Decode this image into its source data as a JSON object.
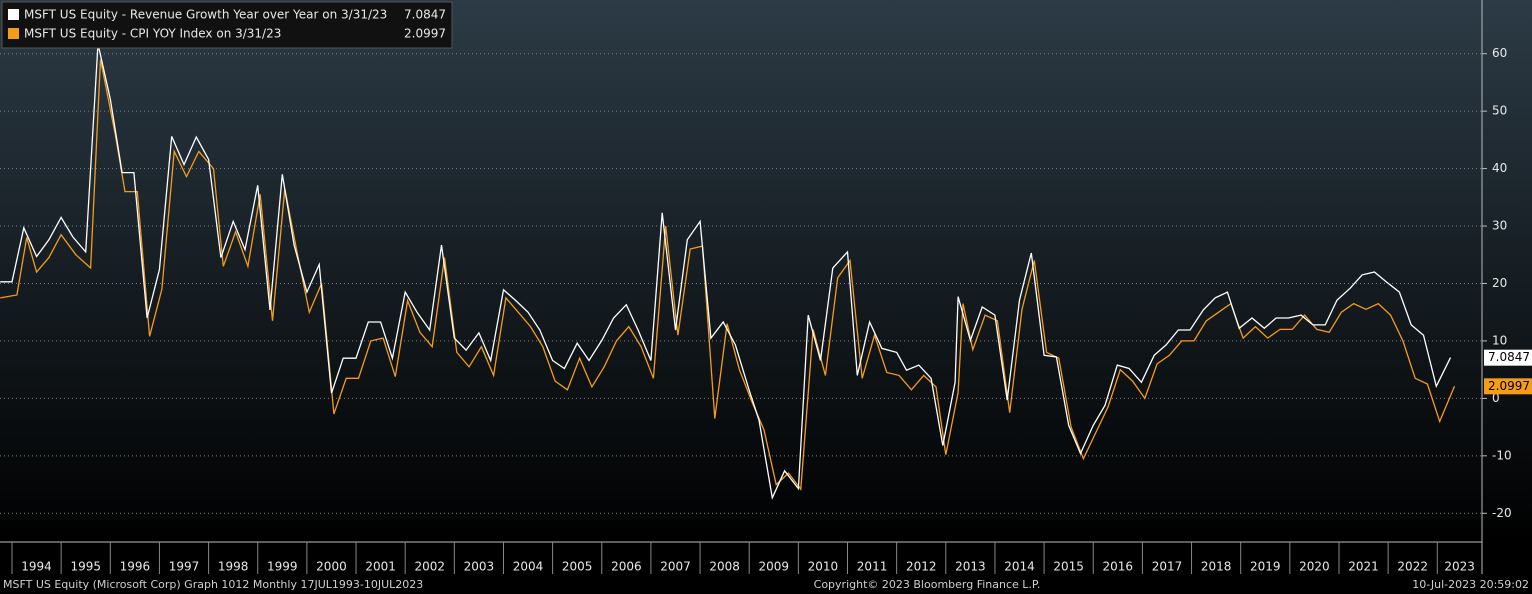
{
  "chart_data": {
    "type": "line",
    "series": [
      {
        "name": "MSFT US Equity - Revenue Growth Year over Year on 3/31/23",
        "color": "#ffffff",
        "last_value": 7.0847,
        "x": [
          1993.76,
          1994.0,
          1994.24,
          1994.5,
          1994.75,
          1995.0,
          1995.24,
          1995.5,
          1995.75,
          1996.0,
          1996.24,
          1996.48,
          1996.75,
          1997.0,
          1997.25,
          1997.5,
          1997.75,
          1998.0,
          1998.25,
          1998.5,
          1998.74,
          1999.0,
          1999.25,
          1999.5,
          1999.74,
          2000.0,
          2000.25,
          2000.5,
          2000.74,
          2001.0,
          2001.25,
          2001.5,
          2001.74,
          2002.0,
          2002.24,
          2002.5,
          2002.74,
          2003.0,
          2003.24,
          2003.5,
          2003.74,
          2004.0,
          2004.24,
          2004.5,
          2004.74,
          2005.0,
          2005.24,
          2005.5,
          2005.74,
          2006.0,
          2006.24,
          2006.5,
          2006.74,
          2007.0,
          2007.23,
          2007.5,
          2007.74,
          2008.0,
          2008.22,
          2008.47,
          2008.72,
          2009.0,
          2009.2,
          2009.47,
          2009.72,
          2010.0,
          2010.2,
          2010.45,
          2010.7,
          2011.0,
          2011.2,
          2011.45,
          2011.7,
          2012.0,
          2012.2,
          2012.45,
          2012.7,
          2012.94,
          2013.19,
          2013.25,
          2013.5,
          2013.74,
          2014.0,
          2014.25,
          2014.5,
          2014.74,
          2015.0,
          2015.25,
          2015.5,
          2015.74,
          2016.0,
          2016.24,
          2016.49,
          2016.73,
          2016.98,
          2017.24,
          2017.48,
          2017.73,
          2017.97,
          2018.24,
          2018.48,
          2018.73,
          2018.97,
          2019.23,
          2019.48,
          2019.72,
          2019.97,
          2020.23,
          2020.47,
          2020.72,
          2020.96,
          2021.23,
          2021.47,
          2021.72,
          2021.96,
          2022.23,
          2022.47,
          2022.72,
          2022.98,
          2023.27
        ],
        "values": [
          20.3,
          20.3,
          29.7,
          24.7,
          27.6,
          31.5,
          28.1,
          25.5,
          61.7,
          52.1,
          39.3,
          39.3,
          14.0,
          22.4,
          45.6,
          40.7,
          45.5,
          41.6,
          24.5,
          30.8,
          25.9,
          37.1,
          15.4,
          39.0,
          26.7,
          18.5,
          23.3,
          0.9,
          7.0,
          7.0,
          13.3,
          13.3,
          7.0,
          18.5,
          15.0,
          11.9,
          26.7,
          10.5,
          8.4,
          11.4,
          6.6,
          18.9,
          17.1,
          15.0,
          11.9,
          6.6,
          5.2,
          9.6,
          6.6,
          10.1,
          14.0,
          16.3,
          11.9,
          6.6,
          32.3,
          11.9,
          27.6,
          30.8,
          10.5,
          13.3,
          9.3,
          1.4,
          -3.8,
          -17.3,
          -12.6,
          -15.7,
          14.5,
          6.6,
          22.7,
          25.5,
          4.0,
          13.3,
          8.7,
          8.0,
          4.9,
          5.8,
          3.5,
          -8.2,
          2.8,
          17.7,
          10.1,
          15.9,
          14.5,
          -0.3,
          17.1,
          25.3,
          7.5,
          7.2,
          -4.7,
          -9.6,
          -4.7,
          -1.2,
          5.8,
          5.2,
          2.8,
          7.5,
          9.3,
          11.9,
          11.9,
          15.4,
          17.5,
          18.5,
          12.2,
          14.0,
          12.2,
          14.0,
          14.0,
          14.5,
          12.8,
          12.8,
          17.1,
          19.2,
          21.5,
          22.0,
          20.3,
          18.5,
          12.8,
          11.0,
          2.1,
          7.1
        ]
      },
      {
        "name": "MSFT US Equity - CPI YOY Index on 3/31/23",
        "color": "#f59c1a",
        "last_value": 2.0997,
        "x": [
          1993.76,
          1994.1,
          1994.3,
          1994.5,
          1994.75,
          1995.0,
          1995.3,
          1995.6,
          1995.8,
          1996.1,
          1996.3,
          1996.55,
          1996.8,
          1997.05,
          1997.3,
          1997.55,
          1997.8,
          1998.1,
          1998.3,
          1998.55,
          1998.8,
          1999.05,
          1999.3,
          1999.55,
          1999.8,
          2000.05,
          2000.3,
          2000.55,
          2000.8,
          2001.05,
          2001.3,
          2001.55,
          2001.8,
          2002.05,
          2002.3,
          2002.55,
          2002.8,
          2003.05,
          2003.3,
          2003.55,
          2003.8,
          2004.05,
          2004.3,
          2004.55,
          2004.8,
          2005.05,
          2005.3,
          2005.55,
          2005.8,
          2006.05,
          2006.3,
          2006.55,
          2006.8,
          2007.05,
          2007.3,
          2007.55,
          2007.8,
          2008.05,
          2008.3,
          2008.55,
          2008.8,
          2009.05,
          2009.3,
          2009.55,
          2009.8,
          2010.05,
          2010.3,
          2010.55,
          2010.8,
          2011.05,
          2011.3,
          2011.55,
          2011.8,
          2012.05,
          2012.3,
          2012.55,
          2012.8,
          2013.0,
          2013.25,
          2013.35,
          2013.55,
          2013.8,
          2014.05,
          2014.3,
          2014.55,
          2014.8,
          2015.05,
          2015.3,
          2015.55,
          2015.8,
          2016.05,
          2016.3,
          2016.55,
          2016.8,
          2017.05,
          2017.3,
          2017.55,
          2017.8,
          2018.05,
          2018.3,
          2018.55,
          2018.8,
          2019.05,
          2019.3,
          2019.55,
          2019.8,
          2020.05,
          2020.3,
          2020.55,
          2020.8,
          2021.05,
          2021.3,
          2021.55,
          2021.8,
          2022.05,
          2022.3,
          2022.55,
          2022.8,
          2023.05,
          2023.35
        ],
        "values": [
          17.5,
          18,
          28,
          22,
          24.5,
          28.5,
          25,
          22.7,
          59,
          46,
          36,
          36,
          10.8,
          19,
          43,
          38.6,
          43,
          40,
          23,
          29,
          23,
          35.5,
          13.5,
          36.5,
          25.5,
          15,
          20,
          -2.7,
          3.5,
          3.5,
          10,
          10.5,
          3.8,
          17,
          11.5,
          9,
          24.5,
          8,
          5.5,
          9,
          4,
          17.5,
          15,
          12.5,
          9,
          3,
          1.5,
          7,
          2,
          5.5,
          10,
          12.5,
          9,
          3.5,
          30,
          11,
          26,
          26.5,
          -3.5,
          13,
          5,
          -0.5,
          -5.5,
          -15,
          -13,
          -15.8,
          12,
          4,
          21,
          24,
          3.5,
          11,
          4.5,
          4,
          1.5,
          4,
          2,
          -9.8,
          1,
          16.5,
          8.5,
          14.5,
          13.5,
          -2.5,
          15.5,
          24,
          8,
          7,
          -5,
          -10.5,
          -6,
          -1.5,
          5,
          3,
          0,
          6,
          7.5,
          10,
          10,
          13.5,
          15,
          16.5,
          10.5,
          12.5,
          10.5,
          12,
          12,
          14.5,
          12,
          11.5,
          15,
          16.5,
          15.5,
          16.5,
          14.5,
          10,
          3.5,
          2.5,
          -4,
          2.1
        ]
      }
    ],
    "xlim": [
      1993.756,
      2023.91
    ],
    "xticks": [
      1994,
      1995,
      1996,
      1997,
      1998,
      1999,
      2000,
      2001,
      2002,
      2003,
      2004,
      2005,
      2006,
      2007,
      2008,
      2009,
      2010,
      2011,
      2012,
      2013,
      2014,
      2015,
      2016,
      2017,
      2018,
      2019,
      2020,
      2021,
      2022,
      2023
    ],
    "ylim": [
      -25,
      69
    ],
    "yticks": [
      -20,
      -10,
      0,
      10,
      20,
      30,
      40,
      50,
      60
    ],
    "grid": true,
    "legend": "upper left"
  },
  "footer": {
    "left": "MSFT US Equity (Microsoft Corp) Graph 1012  Monthly 17JUL1993-10JUL2023",
    "center": "Copyright© 2023 Bloomberg Finance L.P.",
    "right": "10-Jul-2023 20:59:02"
  }
}
